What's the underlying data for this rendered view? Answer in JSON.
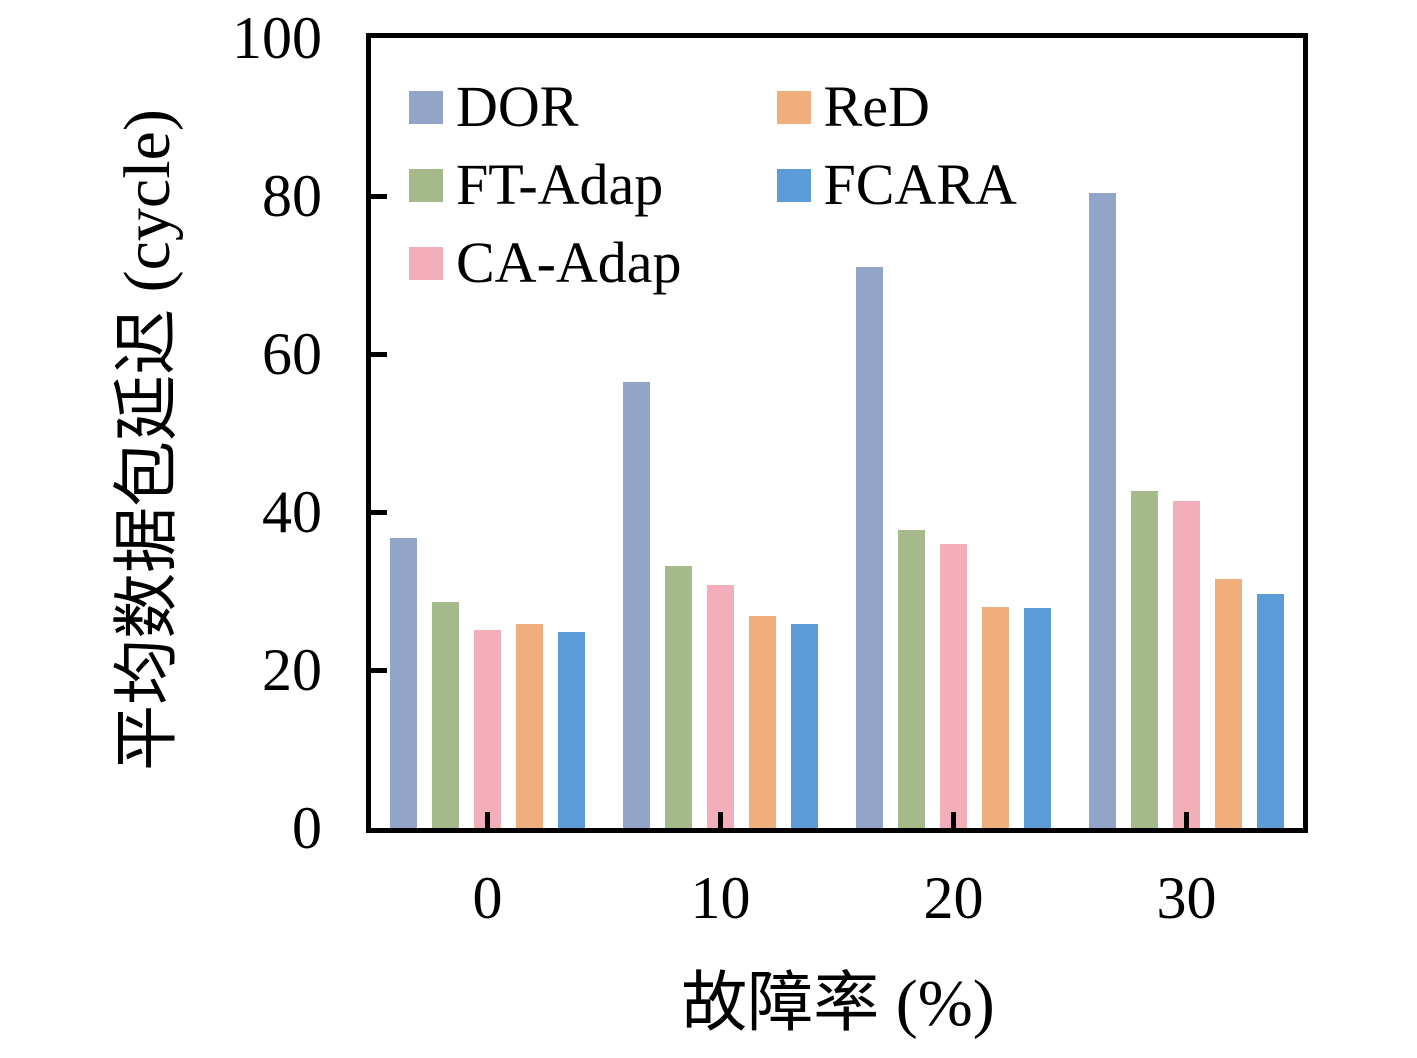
{
  "chart_data": {
    "type": "bar",
    "title": "",
    "xlabel": "故障率 (%)",
    "ylabel": "平均数据包延迟 (cycle)",
    "categories": [
      "0",
      "10",
      "20",
      "30"
    ],
    "series": [
      {
        "name": "DOR",
        "color": "#92A5C8",
        "values": [
          36.7,
          56.4,
          71.0,
          80.4
        ]
      },
      {
        "name": "FT-Adap",
        "color": "#A5BA8B",
        "values": [
          28.6,
          33.2,
          37.7,
          42.6
        ]
      },
      {
        "name": "CA-Adap",
        "color": "#F2AFBA",
        "values": [
          25.1,
          30.7,
          36.0,
          41.4
        ]
      },
      {
        "name": "ReD",
        "color": "#F0AE7C",
        "values": [
          25.8,
          26.8,
          28.0,
          31.5
        ]
      },
      {
        "name": "FCARA",
        "color": "#5A9BD8",
        "values": [
          24.8,
          25.8,
          27.8,
          29.6
        ]
      }
    ],
    "ylim": [
      0,
      100
    ],
    "yticks": [
      0,
      20,
      40,
      60,
      80,
      100
    ],
    "grid": false,
    "legend": {
      "position": "upper-left-inside",
      "columns": 2,
      "column_major": true,
      "entries": [
        "DOR",
        "FT-Adap",
        "CA-Adap",
        "ReD",
        "FCARA"
      ]
    },
    "colors": {
      "axis": "#000000",
      "background": "#FFFFFF",
      "text": "#000000"
    }
  }
}
